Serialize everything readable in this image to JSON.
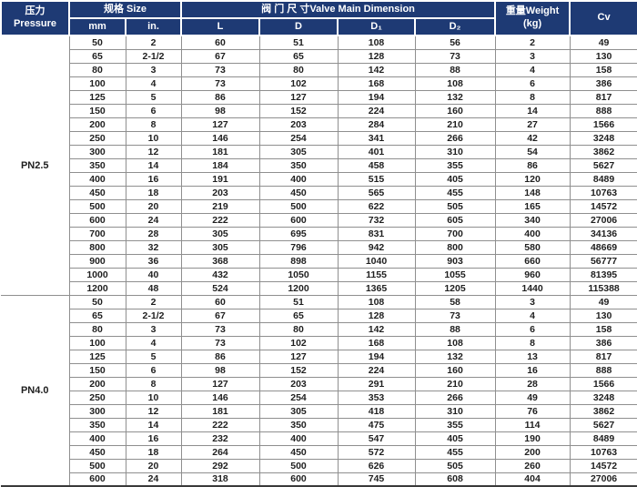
{
  "colors": {
    "header_bg": "#1e3a74",
    "header_text": "#ffffff",
    "grid": "#8f8f8f",
    "text": "#1f1f1f",
    "bottom_line": "#3a3a3a",
    "page_bg": "#ffffff"
  },
  "header": {
    "pressure_zh": "压力",
    "pressure_en": "Pressure",
    "size_group": "规格 Size",
    "unit_mm": "mm",
    "unit_in": "in.",
    "dimension_group": "阀 门 尺 寸Valve Main Dimension",
    "dim_cols": [
      "L",
      "D",
      "D₁",
      "D₂"
    ],
    "weight_line1": "重量Weight",
    "weight_line2": "(kg)",
    "cv": "Cv"
  },
  "table": {
    "column_keys": [
      "mm",
      "in",
      "L",
      "D",
      "D1",
      "D2",
      "weight_kg",
      "Cv"
    ],
    "sections": [
      {
        "pressure": "PN2.5",
        "rows": [
          [
            "50",
            "2",
            "60",
            "51",
            "108",
            "56",
            "2",
            "49"
          ],
          [
            "65",
            "2-1/2",
            "67",
            "65",
            "128",
            "73",
            "3",
            "130"
          ],
          [
            "80",
            "3",
            "73",
            "80",
            "142",
            "88",
            "4",
            "158"
          ],
          [
            "100",
            "4",
            "73",
            "102",
            "168",
            "108",
            "6",
            "386"
          ],
          [
            "125",
            "5",
            "86",
            "127",
            "194",
            "132",
            "8",
            "817"
          ],
          [
            "150",
            "6",
            "98",
            "152",
            "224",
            "160",
            "14",
            "888"
          ],
          [
            "200",
            "8",
            "127",
            "203",
            "284",
            "210",
            "27",
            "1566"
          ],
          [
            "250",
            "10",
            "146",
            "254",
            "341",
            "266",
            "42",
            "3248"
          ],
          [
            "300",
            "12",
            "181",
            "305",
            "401",
            "310",
            "54",
            "3862"
          ],
          [
            "350",
            "14",
            "184",
            "350",
            "458",
            "355",
            "86",
            "5627"
          ],
          [
            "400",
            "16",
            "191",
            "400",
            "515",
            "405",
            "120",
            "8489"
          ],
          [
            "450",
            "18",
            "203",
            "450",
            "565",
            "455",
            "148",
            "10763"
          ],
          [
            "500",
            "20",
            "219",
            "500",
            "622",
            "505",
            "165",
            "14572"
          ],
          [
            "600",
            "24",
            "222",
            "600",
            "732",
            "605",
            "340",
            "27006"
          ],
          [
            "700",
            "28",
            "305",
            "695",
            "831",
            "700",
            "400",
            "34136"
          ],
          [
            "800",
            "32",
            "305",
            "796",
            "942",
            "800",
            "580",
            "48669"
          ],
          [
            "900",
            "36",
            "368",
            "898",
            "1040",
            "903",
            "660",
            "56777"
          ],
          [
            "1000",
            "40",
            "432",
            "1050",
            "1155",
            "1055",
            "960",
            "81395"
          ],
          [
            "1200",
            "48",
            "524",
            "1200",
            "1365",
            "1205",
            "1440",
            "115388"
          ]
        ]
      },
      {
        "pressure": "PN4.0",
        "rows": [
          [
            "50",
            "2",
            "60",
            "51",
            "108",
            "58",
            "3",
            "49"
          ],
          [
            "65",
            "2-1/2",
            "67",
            "65",
            "128",
            "73",
            "4",
            "130"
          ],
          [
            "80",
            "3",
            "73",
            "80",
            "142",
            "88",
            "6",
            "158"
          ],
          [
            "100",
            "4",
            "73",
            "102",
            "168",
            "108",
            "8",
            "386"
          ],
          [
            "125",
            "5",
            "86",
            "127",
            "194",
            "132",
            "13",
            "817"
          ],
          [
            "150",
            "6",
            "98",
            "152",
            "224",
            "160",
            "16",
            "888"
          ],
          [
            "200",
            "8",
            "127",
            "203",
            "291",
            "210",
            "28",
            "1566"
          ],
          [
            "250",
            "10",
            "146",
            "254",
            "353",
            "266",
            "49",
            "3248"
          ],
          [
            "300",
            "12",
            "181",
            "305",
            "418",
            "310",
            "76",
            "3862"
          ],
          [
            "350",
            "14",
            "222",
            "350",
            "475",
            "355",
            "114",
            "5627"
          ],
          [
            "400",
            "16",
            "232",
            "400",
            "547",
            "405",
            "190",
            "8489"
          ],
          [
            "450",
            "18",
            "264",
            "450",
            "572",
            "455",
            "200",
            "10763"
          ],
          [
            "500",
            "20",
            "292",
            "500",
            "626",
            "505",
            "260",
            "14572"
          ],
          [
            "600",
            "24",
            "318",
            "600",
            "745",
            "608",
            "404",
            "27006"
          ]
        ]
      }
    ]
  }
}
